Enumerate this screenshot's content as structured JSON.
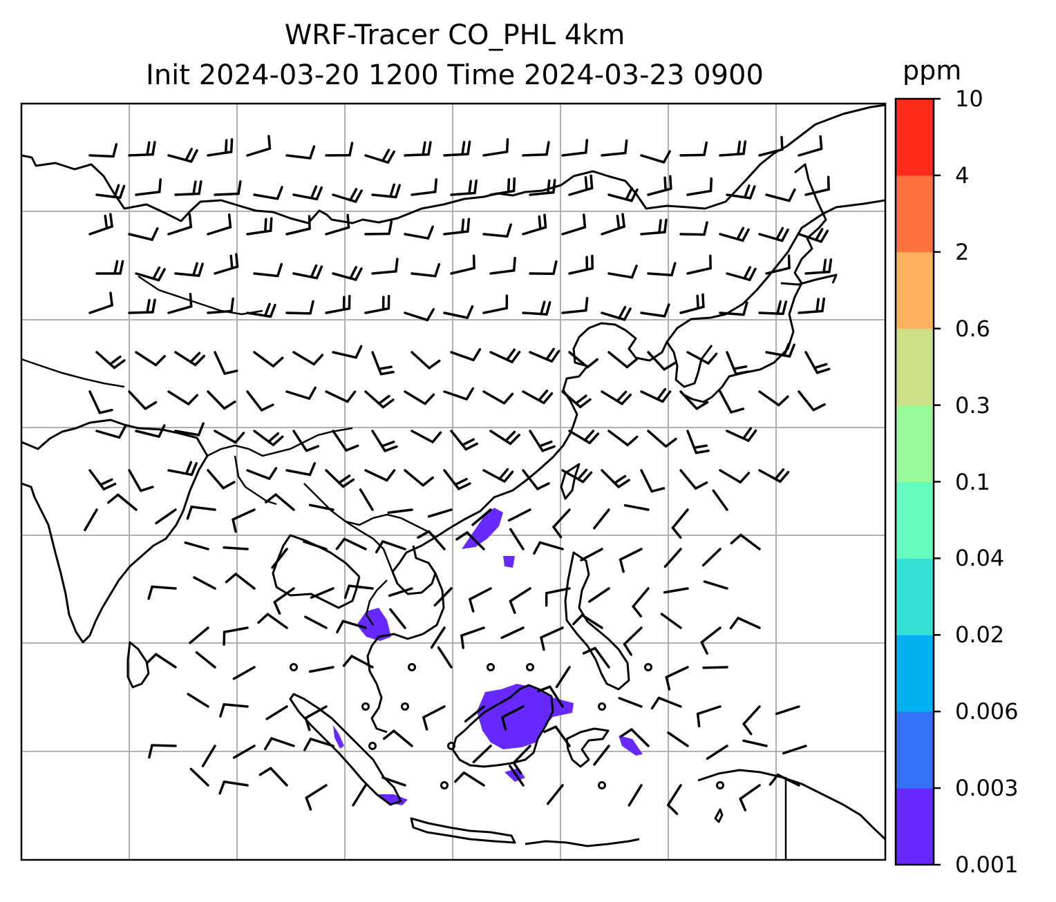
{
  "title": {
    "line1": "WRF-Tracer CO_PHL 4km",
    "line2": "Init 2024-03-20 1200 Time 2024-03-23 0900"
  },
  "colorbar": {
    "unit": "ppm",
    "levels": [
      "0.001",
      "0.003",
      "0.006",
      "0.02",
      "0.04",
      "0.1",
      "0.3",
      "0.6",
      "2",
      "4",
      "10"
    ],
    "colors": [
      "#6629ff",
      "#3371f6",
      "#00b0ef",
      "#33e0d5",
      "#66fcbd",
      "#99fa99",
      "#cce088",
      "#ffb05f",
      "#ff7240",
      "#ff2a1a"
    ]
  },
  "plume_color": "#6629ff",
  "map": {
    "gridlines": true,
    "features": [
      "coastlines",
      "country borders",
      "wind barbs"
    ]
  }
}
